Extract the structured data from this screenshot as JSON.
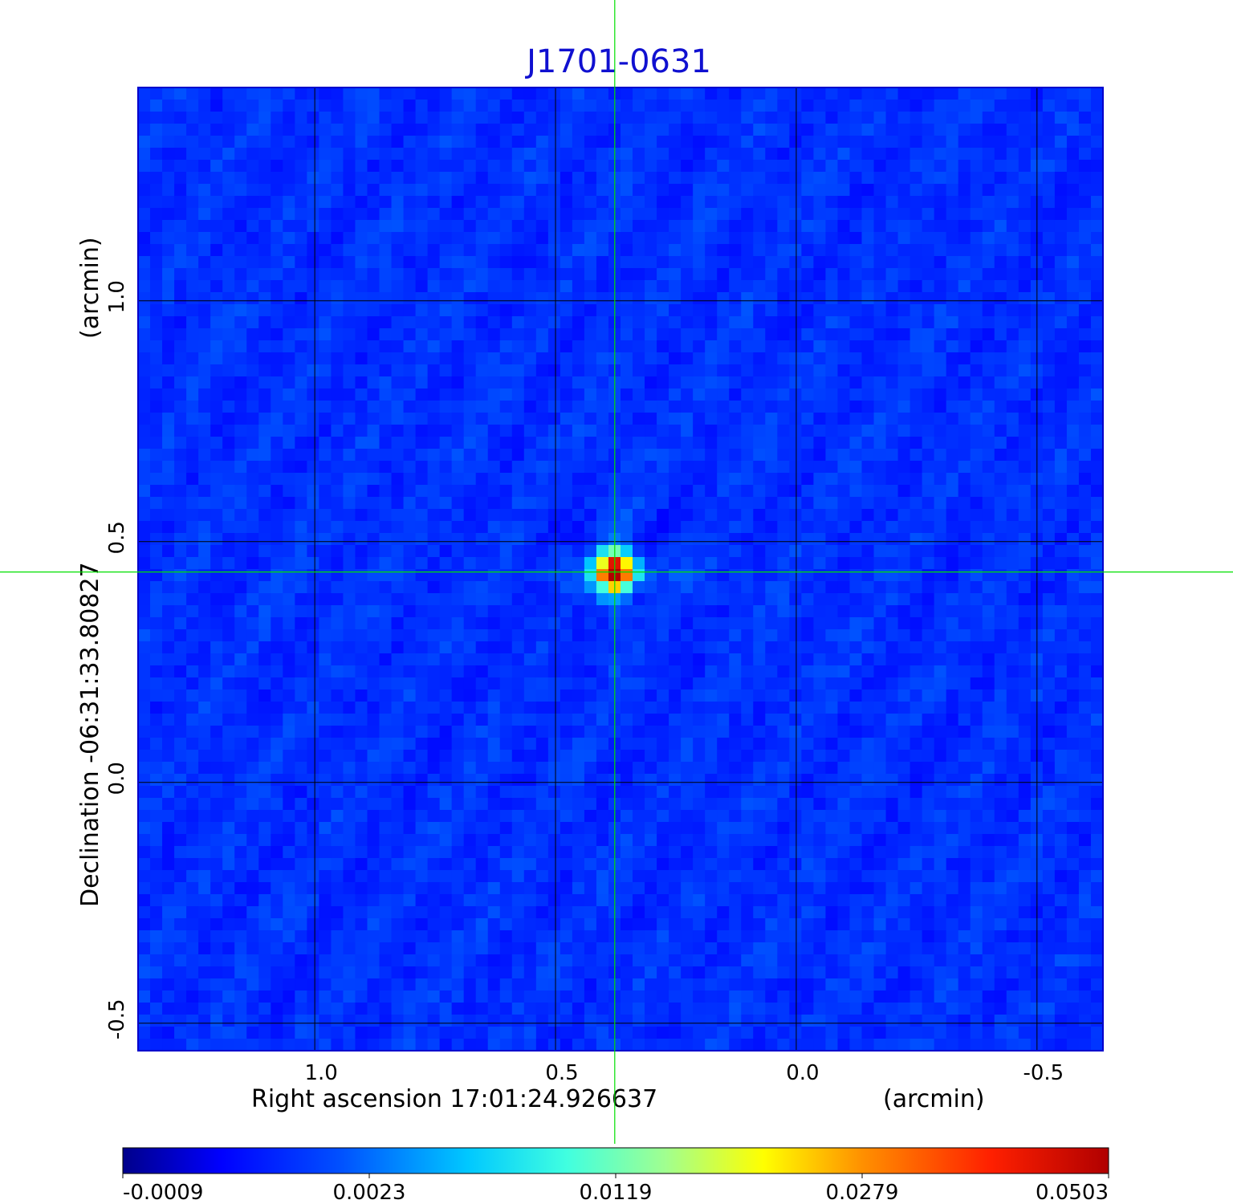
{
  "chart_data": {
    "type": "heatmap",
    "title": "J1701-0631",
    "xlabel": "Right ascension  17:01:24.926637",
    "xunit": "(arcmin)",
    "ylabel": "Declination  -06:31:33.80827",
    "yunit": "(arcmin)",
    "x_ticks": [
      "1.0",
      "0.5",
      "0.0",
      "-0.5"
    ],
    "x_tick_values": [
      1.0,
      0.5,
      0.0,
      -0.5
    ],
    "y_ticks": [
      "1.0",
      "0.5",
      "0.0",
      "-0.5"
    ],
    "y_tick_values": [
      1.0,
      0.5,
      0.0,
      -0.5
    ],
    "xlim": [
      1.367,
      -0.637
    ],
    "ylim": [
      -0.557,
      1.443
    ],
    "grid": true,
    "colormap": "jet",
    "colorbar": {
      "placement": "bottom",
      "ticks": [
        "-0.0009",
        "0.0023",
        "0.0119",
        "0.0279",
        "0.0503"
      ],
      "tick_values": [
        -0.0009,
        0.0023,
        0.0119,
        0.0279,
        0.0503
      ]
    },
    "peak": {
      "x": 0.377,
      "y": 0.437,
      "value": 0.0503
    },
    "crosshair": {
      "x": 0.377,
      "y": 0.437,
      "color": "#00e000"
    },
    "colors": {
      "title": "#1010d0",
      "frame": "#0000cc",
      "grid": "#000000"
    }
  }
}
